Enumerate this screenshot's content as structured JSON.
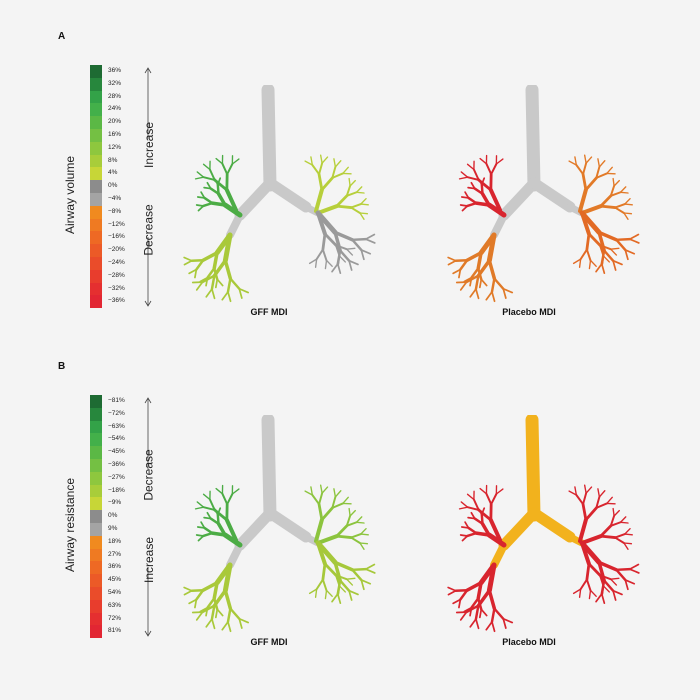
{
  "colors": {
    "background": "#f4f4f4",
    "trachea_gray": "#c9c9c9",
    "placebo_B_trachea": "#f2b21d",
    "branch_gray": "#9c9c9c"
  },
  "panelA": {
    "letter": "A",
    "side_label": "Airway volume",
    "top_direction": "Increase",
    "bottom_direction": "Decrease",
    "ticks": [
      "36%",
      "32%",
      "28%",
      "24%",
      "20%",
      "16%",
      "12%",
      "8%",
      "4%",
      "0%",
      "−4%",
      "−8%",
      "−12%",
      "−16%",
      "−20%",
      "−24%",
      "−28%",
      "−32%",
      "−36%"
    ],
    "scale_colors": [
      "#1e6b33",
      "#27873d",
      "#33a248",
      "#43b04a",
      "#5bb845",
      "#74c043",
      "#8ec73e",
      "#a8cd3a",
      "#c7d637",
      "#8c8c8c",
      "#a4a4a4",
      "#f08a1f",
      "#ef7a22",
      "#ee6924",
      "#ec5a27",
      "#ea4c2a",
      "#e83d2d",
      "#e52f30",
      "#e22633"
    ],
    "left_caption": "GFF MDI",
    "right_caption": "Placebo MDI",
    "left_lung": {
      "ul": "#4cac45",
      "ll": "#a9c93a",
      "ur": "#b7cf3b",
      "lr": "#9a9a9a",
      "trachea": "#c9c9c9"
    },
    "right_lung": {
      "ul": "#d8252e",
      "ll": "#e07a28",
      "ur": "#e27a28",
      "lr": "#e26a25",
      "trachea": "#c9c9c9"
    }
  },
  "panelB": {
    "letter": "B",
    "side_label": "Airway resistance",
    "top_direction": "Decrease",
    "bottom_direction": "Increase",
    "ticks": [
      "−81%",
      "−72%",
      "−63%",
      "−54%",
      "−45%",
      "−36%",
      "−27%",
      "−18%",
      "−9%",
      "0%",
      "9%",
      "18%",
      "27%",
      "36%",
      "45%",
      "54%",
      "63%",
      "72%",
      "81%"
    ],
    "scale_colors": [
      "#1e6b33",
      "#27873d",
      "#33a248",
      "#43b04a",
      "#5bb845",
      "#74c043",
      "#8ec73e",
      "#a8cd3a",
      "#c7d637",
      "#8c8c8c",
      "#a4a4a4",
      "#f08a1f",
      "#ef7a22",
      "#ee6924",
      "#ec5a27",
      "#ea4c2a",
      "#e83d2d",
      "#e52f30",
      "#e22633"
    ],
    "left_caption": "GFF MDI",
    "right_caption": "Placebo MDI",
    "left_lung": {
      "ul": "#4cac45",
      "ll": "#a9c93a",
      "ur": "#8cc43e",
      "lr": "#a6c83a",
      "trachea": "#c9c9c9"
    },
    "right_lung": {
      "ul": "#d8252e",
      "ll": "#d8252e",
      "ur": "#d8252e",
      "lr": "#d8252e",
      "trachea": "#f2b21d"
    }
  }
}
